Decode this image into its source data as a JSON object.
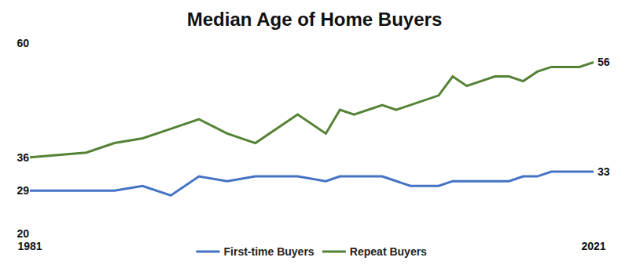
{
  "chart_data": {
    "type": "line",
    "title": "Median Age of Home Buyers",
    "xlim": [
      1981,
      2021
    ],
    "xticks": [
      1981,
      2021
    ],
    "ylim": [
      20,
      60
    ],
    "yticks": [
      20,
      29,
      36,
      60
    ],
    "grid": false,
    "legend": "bottom",
    "series": [
      {
        "name": "First-time Buyers",
        "color": "#4472c4",
        "x": [
          1981,
          1987,
          1989,
          1991,
          1993,
          1995,
          1997,
          2000,
          2002,
          2003,
          2006,
          2008,
          2010,
          2011,
          2015,
          2016,
          2017,
          2018,
          2021
        ],
        "values": [
          29,
          29,
          30,
          28,
          32,
          31,
          32,
          32,
          31,
          32,
          32,
          30,
          30,
          31,
          31,
          32,
          32,
          33,
          33
        ]
      },
      {
        "name": "Repeat Buyers",
        "color": "#548235",
        "x": [
          1981,
          1985,
          1987,
          1989,
          1991,
          1993,
          1995,
          1997,
          2000,
          2002,
          2003,
          2004,
          2006,
          2007,
          2010,
          2011,
          2012,
          2014,
          2015,
          2016,
          2017,
          2018,
          2019,
          2020,
          2021
        ],
        "values": [
          36,
          37,
          39,
          40,
          42,
          44,
          41,
          39,
          45,
          41,
          46,
          45,
          47,
          46,
          49,
          53,
          51,
          53,
          53,
          52,
          54,
          55,
          55,
          55,
          56
        ]
      }
    ],
    "annotations": [
      {
        "text": "56",
        "x": 2021,
        "y": 56
      },
      {
        "text": "33",
        "x": 2021,
        "y": 33
      }
    ]
  }
}
